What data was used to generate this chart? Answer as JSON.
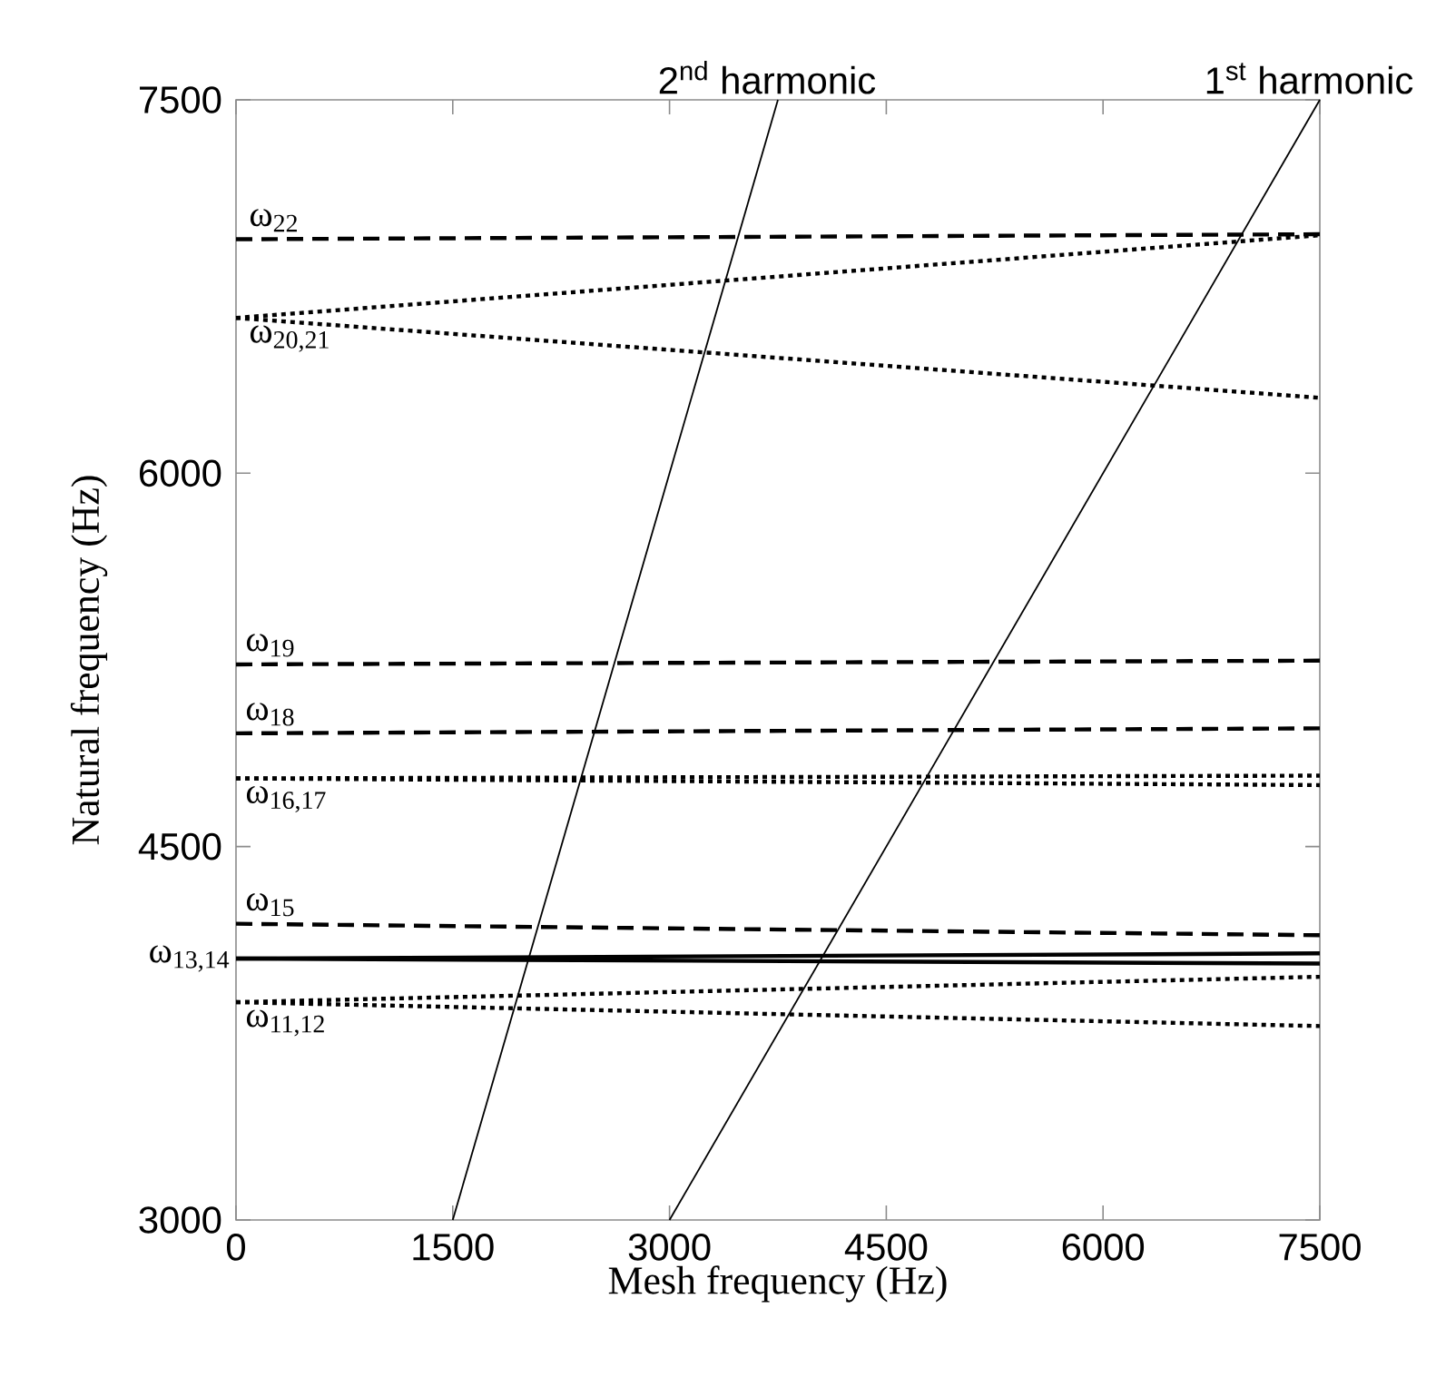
{
  "chart_data": {
    "type": "line",
    "xlabel": "Mesh frequency (Hz)",
    "ylabel": "Natural frequency (Hz)",
    "xlim": [
      0,
      7500
    ],
    "ylim": [
      3000,
      7500
    ],
    "xticks": [
      0,
      1500,
      3000,
      4500,
      6000,
      7500
    ],
    "yticks": [
      3000,
      4500,
      6000,
      7500
    ],
    "marker": "none",
    "series": [
      {
        "color": "#000000",
        "line_style": "solid",
        "x": [
          1500,
          3750
        ],
        "values": [
          3000,
          7500
        ]
      },
      {
        "color": "#000000",
        "line_style": "solid",
        "x": [
          3000,
          7500
        ],
        "values": [
          3000,
          7500
        ]
      },
      {
        "color": "#000000",
        "line_style": "dashed",
        "x": [
          0,
          7500
        ],
        "values": [
          6940,
          6960
        ]
      },
      {
        "color": "#000000",
        "line_style": "dotted",
        "x": [
          0,
          7500
        ],
        "values": [
          6624,
          6956
        ]
      },
      {
        "color": "#000000",
        "line_style": "dotted",
        "x": [
          0,
          7500
        ],
        "values": [
          6624,
          6303
        ]
      },
      {
        "color": "#000000",
        "line_style": "dashed",
        "x": [
          0,
          7500
        ],
        "values": [
          5232,
          5247
        ]
      },
      {
        "color": "#000000",
        "line_style": "dashed",
        "x": [
          0,
          7500
        ],
        "values": [
          4955,
          4975
        ]
      },
      {
        "color": "#000000",
        "line_style": "dotted",
        "x": [
          0,
          7500
        ],
        "values": [
          4774,
          4785
        ]
      },
      {
        "color": "#000000",
        "line_style": "dotted",
        "x": [
          0,
          7500
        ],
        "values": [
          4774,
          4747
        ]
      },
      {
        "color": "#000000",
        "line_style": "dashed",
        "x": [
          0,
          7500
        ],
        "values": [
          4190,
          4144
        ]
      },
      {
        "color": "#000000",
        "line_style": "solid",
        "x": [
          0,
          7500
        ],
        "values": [
          4050,
          4071
        ]
      },
      {
        "color": "#000000",
        "line_style": "solid",
        "x": [
          0,
          7500
        ],
        "values": [
          4050,
          4030
        ]
      },
      {
        "color": "#000000",
        "line_style": "dotted",
        "x": [
          0,
          7500
        ],
        "values": [
          3875,
          3977
        ]
      },
      {
        "color": "#000000",
        "line_style": "dotted",
        "x": [
          0,
          7500
        ],
        "values": [
          3875,
          3779
        ]
      }
    ],
    "annotations": [
      {
        "text": "2$^{nd}$ harmonic",
        "x": 3750,
        "y": 7500
      },
      {
        "text": "1$^{st}$ harmonic",
        "x": 7500,
        "y": 7500
      },
      {
        "text": "ω$_{22}$",
        "x": 0,
        "y": 6940
      },
      {
        "text": "ω$_{20,21}$",
        "x": 0,
        "y": 6624
      },
      {
        "text": "ω$_{19}$",
        "x": 0,
        "y": 5232
      },
      {
        "text": "ω$_{18}$",
        "x": 0,
        "y": 4955
      },
      {
        "text": "ω$_{16,17}$",
        "x": 0,
        "y": 4774
      },
      {
        "text": "ω$_{15}$",
        "x": 0,
        "y": 4190
      },
      {
        "text": "ω$_{13,14}$",
        "x": 0,
        "y": 4050
      },
      {
        "text": "ω$_{11,12}$",
        "x": 0,
        "y": 3875
      }
    ]
  }
}
